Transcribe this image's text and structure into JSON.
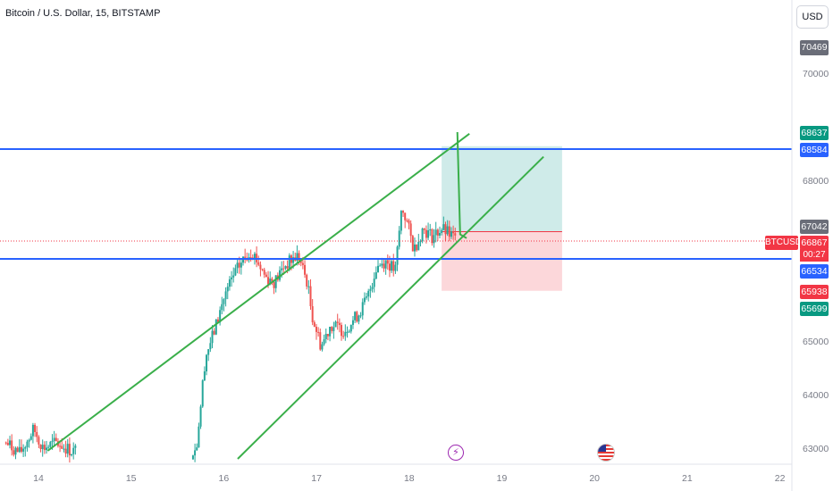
{
  "header": {
    "title": "Bitcoin / U.S. Dollar, 15, BITSTAMP",
    "currency_button": "USD"
  },
  "symbol_badge": "BTCUSD",
  "countdown": "00:27",
  "price_labels": {
    "top": "70469",
    "target_top": "68637",
    "upper_line": "68584",
    "band_top": "67042",
    "current": "66867",
    "lower_line": "66534",
    "stop": "65938",
    "band_bottom": "65699"
  },
  "colors": {
    "up": "#26a69a",
    "down": "#ef5350",
    "channel": "#3aaf4a",
    "hline": "#2962ff",
    "profit": "#26a69a",
    "loss": "#f23645",
    "grey": "#6a6d78"
  },
  "events": {
    "flash_icon": "lightning-icon",
    "flag_icon": "us-flag-icon"
  },
  "chart_data": {
    "type": "candlestick",
    "symbol": "Bitcoin / U.S. Dollar",
    "interval": "15",
    "exchange": "BITSTAMP",
    "x_ticks": [
      "14",
      "15",
      "16",
      "17",
      "18",
      "19",
      "20",
      "21",
      "22"
    ],
    "y_ticks": [
      63000,
      64000,
      65000,
      68000,
      70000
    ],
    "ylim": [
      62800,
      71200
    ],
    "current_price": 66867,
    "horizontal_lines": [
      68584,
      66534
    ],
    "channel_upper": [
      {
        "x": 14.1,
        "y": 62950
      },
      {
        "x": 18.65,
        "y": 68870
      }
    ],
    "channel_lower": [
      {
        "x": 16.15,
        "y": 62800
      },
      {
        "x": 19.45,
        "y": 68440
      }
    ],
    "long_position": {
      "entry": 67042,
      "target": 68637,
      "stop": 65938,
      "x_start": 18.35,
      "x_end": 19.65
    },
    "approx_path": [
      {
        "x": 13.65,
        "y": 63100
      },
      {
        "x": 13.8,
        "y": 62900
      },
      {
        "x": 13.95,
        "y": 63350
      },
      {
        "x": 14.05,
        "y": 63000
      },
      {
        "x": 14.2,
        "y": 63100
      },
      {
        "x": 14.35,
        "y": 62950
      },
      {
        "x": 15.7,
        "y": 62950
      },
      {
        "x": 15.75,
        "y": 63800
      },
      {
        "x": 15.8,
        "y": 64700
      },
      {
        "x": 15.9,
        "y": 65200
      },
      {
        "x": 16.0,
        "y": 65800
      },
      {
        "x": 16.1,
        "y": 66200
      },
      {
        "x": 16.2,
        "y": 66500
      },
      {
        "x": 16.3,
        "y": 66700
      },
      {
        "x": 16.45,
        "y": 66200
      },
      {
        "x": 16.55,
        "y": 66100
      },
      {
        "x": 16.65,
        "y": 66400
      },
      {
        "x": 16.8,
        "y": 66600
      },
      {
        "x": 16.9,
        "y": 66100
      },
      {
        "x": 16.95,
        "y": 65500
      },
      {
        "x": 17.05,
        "y": 64900
      },
      {
        "x": 17.15,
        "y": 65300
      },
      {
        "x": 17.3,
        "y": 65200
      },
      {
        "x": 17.45,
        "y": 65500
      },
      {
        "x": 17.55,
        "y": 65800
      },
      {
        "x": 17.65,
        "y": 66400
      },
      {
        "x": 17.75,
        "y": 66500
      },
      {
        "x": 17.85,
        "y": 66300
      },
      {
        "x": 17.92,
        "y": 67500
      },
      {
        "x": 17.98,
        "y": 67200
      },
      {
        "x": 18.05,
        "y": 66700
      },
      {
        "x": 18.15,
        "y": 67100
      },
      {
        "x": 18.25,
        "y": 66950
      },
      {
        "x": 18.35,
        "y": 67100
      },
      {
        "x": 18.5,
        "y": 66900
      }
    ]
  }
}
